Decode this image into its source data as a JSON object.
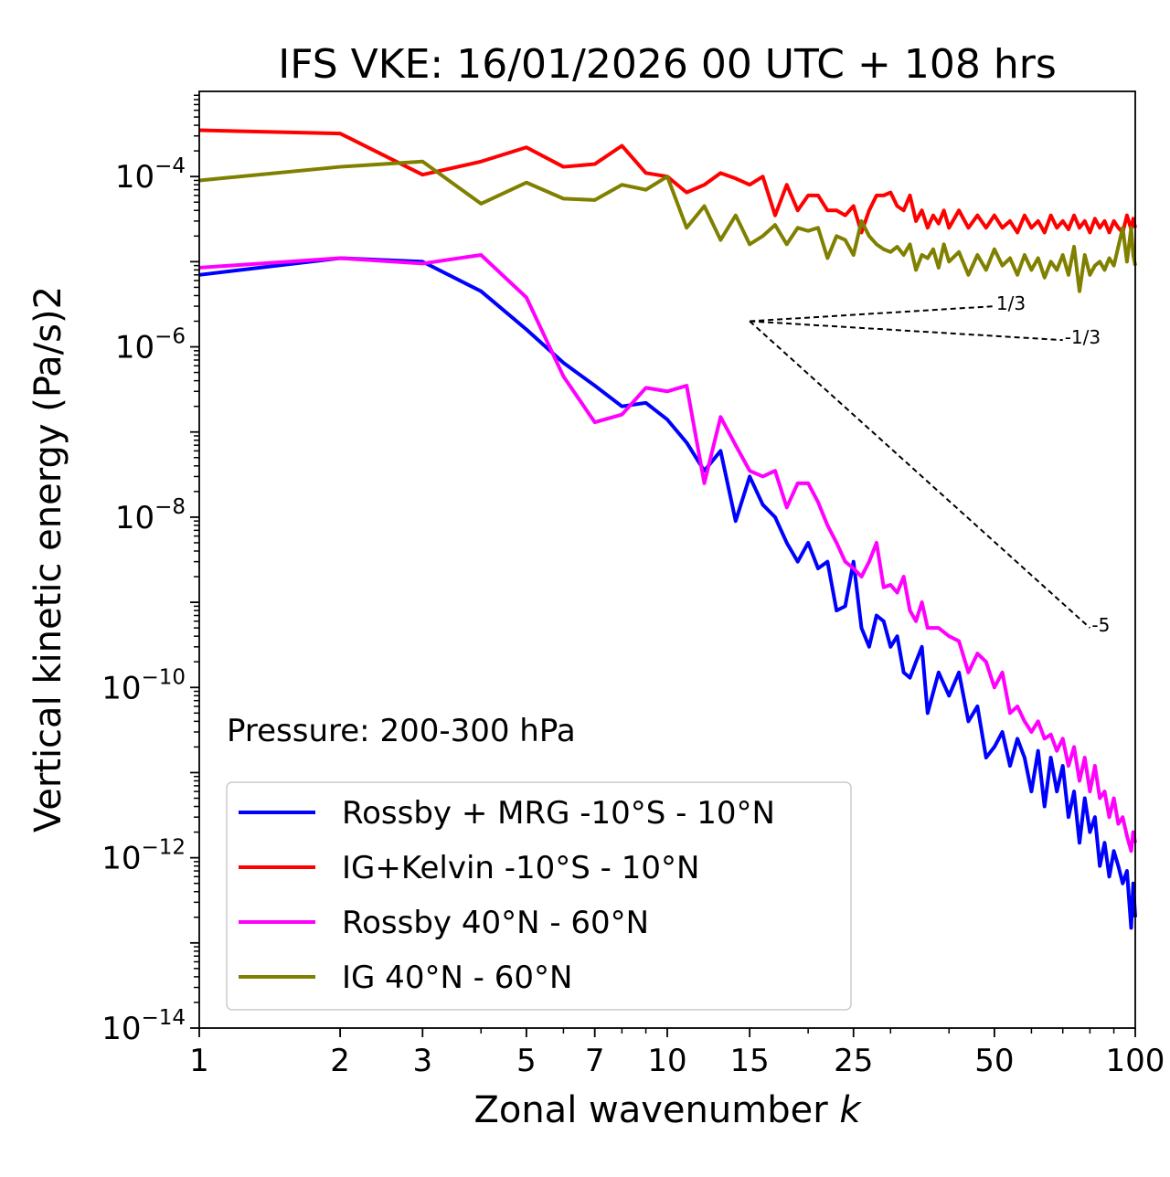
{
  "chart_data": {
    "type": "line",
    "title": "IFS VKE: 16/01/2026 00 UTC + 108 hrs",
    "xlabel": "Zonal wavenumber k",
    "ylabel": "Vertical kinetic energy (Pa/s)2",
    "xscale": "log",
    "yscale": "log",
    "xlim": [
      1,
      100
    ],
    "ylim": [
      1e-14,
      0.001
    ],
    "xticks": [
      1,
      2,
      3,
      5,
      7,
      10,
      15,
      25,
      50,
      100
    ],
    "xtick_labels": [
      "1",
      "2",
      "3",
      "5",
      "7",
      "10",
      "15",
      "25",
      "50",
      "100"
    ],
    "yticks": [
      {
        "value": 0.0001,
        "base": "10",
        "exp": "−4"
      },
      {
        "value": 1e-06,
        "base": "10",
        "exp": "−6"
      },
      {
        "value": 1e-08,
        "base": "10",
        "exp": "−8"
      },
      {
        "value": 1e-10,
        "base": "10",
        "exp": "−10"
      },
      {
        "value": 1e-12,
        "base": "10",
        "exp": "−12"
      },
      {
        "value": 1e-14,
        "base": "10",
        "exp": "−14"
      }
    ],
    "annotation": "Pressure: 200-300 hPa",
    "legend_position": "bottom-left",
    "series": [
      {
        "name": "Rossby + MRG -10°S - 10°N",
        "color": "#0000ff",
        "points": [
          [
            1,
            7e-06
          ],
          [
            2,
            1.1e-05
          ],
          [
            3,
            1e-05
          ],
          [
            4,
            4.5e-06
          ],
          [
            5,
            1.6e-06
          ],
          [
            6,
            6.5e-07
          ],
          [
            7,
            3.5e-07
          ],
          [
            8,
            2e-07
          ],
          [
            9,
            2.2e-07
          ],
          [
            10,
            1.4e-07
          ],
          [
            11,
            7.5e-08
          ],
          [
            12,
            3.5e-08
          ],
          [
            13,
            6e-08
          ],
          [
            14,
            9e-09
          ],
          [
            15,
            3e-08
          ],
          [
            16,
            1.4e-08
          ],
          [
            17,
            1e-08
          ],
          [
            18,
            5e-09
          ],
          [
            19,
            3e-09
          ],
          [
            20,
            5e-09
          ],
          [
            21,
            2.5e-09
          ],
          [
            22,
            3e-09
          ],
          [
            23,
            8e-10
          ],
          [
            24,
            9e-10
          ],
          [
            25,
            3e-09
          ],
          [
            26,
            5e-10
          ],
          [
            27,
            3e-10
          ],
          [
            28,
            7e-10
          ],
          [
            29,
            6e-10
          ],
          [
            30,
            3e-10
          ],
          [
            31,
            4e-10
          ],
          [
            32,
            1.5e-10
          ],
          [
            33,
            1.3e-10
          ],
          [
            34,
            2e-10
          ],
          [
            35,
            3e-10
          ],
          [
            36,
            5e-11
          ],
          [
            38,
            1.5e-10
          ],
          [
            40,
            8e-11
          ],
          [
            42,
            1.5e-10
          ],
          [
            44,
            4e-11
          ],
          [
            46,
            6e-11
          ],
          [
            48,
            1.5e-11
          ],
          [
            50,
            2e-11
          ],
          [
            52,
            3e-11
          ],
          [
            54,
            1.2e-11
          ],
          [
            56,
            2.5e-11
          ],
          [
            58,
            1.5e-11
          ],
          [
            60,
            6e-12
          ],
          [
            62,
            1.8e-11
          ],
          [
            64,
            4e-12
          ],
          [
            66,
            1.5e-11
          ],
          [
            68,
            6e-12
          ],
          [
            70,
            1.2e-11
          ],
          [
            72,
            3e-12
          ],
          [
            74,
            6e-12
          ],
          [
            76,
            1.5e-12
          ],
          [
            78,
            5e-12
          ],
          [
            80,
            2e-12
          ],
          [
            82,
            3e-12
          ],
          [
            84,
            8e-13
          ],
          [
            86,
            1.5e-12
          ],
          [
            88,
            6e-13
          ],
          [
            90,
            1.2e-12
          ],
          [
            92,
            8e-13
          ],
          [
            94,
            5e-13
          ],
          [
            96,
            7e-13
          ],
          [
            98,
            1.5e-13
          ],
          [
            99,
            5e-13
          ],
          [
            100,
            2e-13
          ]
        ]
      },
      {
        "name": "IG+Kelvin -10°S - 10°N",
        "color": "#ff0000",
        "points": [
          [
            1,
            0.00035
          ],
          [
            2,
            0.00032
          ],
          [
            3,
            0.000105
          ],
          [
            4,
            0.00015
          ],
          [
            5,
            0.00022
          ],
          [
            6,
            0.00013
          ],
          [
            7,
            0.00014
          ],
          [
            8,
            0.00023
          ],
          [
            9,
            0.00011
          ],
          [
            10,
            0.0001
          ],
          [
            11,
            6.5e-05
          ],
          [
            12,
            8e-05
          ],
          [
            13,
            0.00011
          ],
          [
            14,
            9.5e-05
          ],
          [
            15,
            8e-05
          ],
          [
            16,
            0.0001
          ],
          [
            17,
            3.5e-05
          ],
          [
            18,
            8e-05
          ],
          [
            19,
            4e-05
          ],
          [
            20,
            6e-05
          ],
          [
            21,
            6e-05
          ],
          [
            22,
            4e-05
          ],
          [
            23,
            4e-05
          ],
          [
            24,
            3.5e-05
          ],
          [
            25,
            4.5e-05
          ],
          [
            26,
            2.2e-05
          ],
          [
            27,
            4e-05
          ],
          [
            28,
            6e-05
          ],
          [
            29,
            6e-05
          ],
          [
            30,
            6.5e-05
          ],
          [
            31,
            4.5e-05
          ],
          [
            32,
            4e-05
          ],
          [
            33,
            6e-05
          ],
          [
            34,
            3e-05
          ],
          [
            35,
            4e-05
          ],
          [
            36,
            2.5e-05
          ],
          [
            37,
            3.5e-05
          ],
          [
            38,
            2.8e-05
          ],
          [
            39,
            4e-05
          ],
          [
            40,
            2.5e-05
          ],
          [
            42,
            4e-05
          ],
          [
            44,
            2.5e-05
          ],
          [
            46,
            3.5e-05
          ],
          [
            48,
            2.5e-05
          ],
          [
            50,
            3.5e-05
          ],
          [
            52,
            2.5e-05
          ],
          [
            54,
            3e-05
          ],
          [
            56,
            2.2e-05
          ],
          [
            58,
            3.5e-05
          ],
          [
            60,
            2.5e-05
          ],
          [
            62,
            3e-05
          ],
          [
            64,
            2.2e-05
          ],
          [
            66,
            3.5e-05
          ],
          [
            68,
            2.5e-05
          ],
          [
            70,
            3e-05
          ],
          [
            72,
            2.4e-05
          ],
          [
            74,
            3.5e-05
          ],
          [
            76,
            2.5e-05
          ],
          [
            78,
            3e-05
          ],
          [
            80,
            2.2e-05
          ],
          [
            82,
            3.2e-05
          ],
          [
            84,
            2.5e-05
          ],
          [
            86,
            3e-05
          ],
          [
            88,
            2.2e-05
          ],
          [
            90,
            3e-05
          ],
          [
            92,
            2.5e-05
          ],
          [
            94,
            2.2e-05
          ],
          [
            96,
            3.5e-05
          ],
          [
            98,
            2.4e-05
          ],
          [
            99,
            3.2e-05
          ],
          [
            100,
            2.5e-05
          ]
        ]
      },
      {
        "name": "Rossby 40°N - 60°N",
        "color": "#ff00ff",
        "points": [
          [
            1,
            8.5e-06
          ],
          [
            2,
            1.1e-05
          ],
          [
            3,
            9.5e-06
          ],
          [
            4,
            1.2e-05
          ],
          [
            5,
            3.8e-06
          ],
          [
            6,
            4.5e-07
          ],
          [
            7,
            1.3e-07
          ],
          [
            8,
            1.6e-07
          ],
          [
            9,
            3.3e-07
          ],
          [
            10,
            3e-07
          ],
          [
            11,
            3.5e-07
          ],
          [
            12,
            2.5e-08
          ],
          [
            13,
            1.5e-07
          ],
          [
            14,
            7e-08
          ],
          [
            15,
            3.5e-08
          ],
          [
            16,
            3e-08
          ],
          [
            17,
            3.5e-08
          ],
          [
            18,
            1.3e-08
          ],
          [
            19,
            2.5e-08
          ],
          [
            20,
            2.5e-08
          ],
          [
            21,
            1.5e-08
          ],
          [
            22,
            8e-09
          ],
          [
            23,
            5e-09
          ],
          [
            24,
            3e-09
          ],
          [
            25,
            2.5e-09
          ],
          [
            26,
            2e-09
          ],
          [
            27,
            3e-09
          ],
          [
            28,
            5e-09
          ],
          [
            29,
            1.5e-09
          ],
          [
            30,
            1.6e-09
          ],
          [
            31,
            1.3e-09
          ],
          [
            32,
            2e-09
          ],
          [
            33,
            8e-10
          ],
          [
            34,
            6e-10
          ],
          [
            35,
            1e-09
          ],
          [
            36,
            5e-10
          ],
          [
            38,
            5e-10
          ],
          [
            40,
            4e-10
          ],
          [
            42,
            3.5e-10
          ],
          [
            44,
            1.5e-10
          ],
          [
            46,
            2.5e-10
          ],
          [
            48,
            2e-10
          ],
          [
            50,
            1e-10
          ],
          [
            52,
            1.5e-10
          ],
          [
            54,
            5e-11
          ],
          [
            56,
            6e-11
          ],
          [
            58,
            4e-11
          ],
          [
            60,
            3e-11
          ],
          [
            62,
            4e-11
          ],
          [
            64,
            2.5e-11
          ],
          [
            66,
            2.8e-11
          ],
          [
            68,
            1.8e-11
          ],
          [
            70,
            2.5e-11
          ],
          [
            72,
            1.2e-11
          ],
          [
            74,
            2e-11
          ],
          [
            76,
            8e-12
          ],
          [
            78,
            1.5e-11
          ],
          [
            80,
            6e-12
          ],
          [
            82,
            1.2e-11
          ],
          [
            84,
            5e-12
          ],
          [
            86,
            6e-12
          ],
          [
            88,
            3e-12
          ],
          [
            90,
            5e-12
          ],
          [
            92,
            2.5e-12
          ],
          [
            94,
            3e-12
          ],
          [
            96,
            1.8e-12
          ],
          [
            98,
            1.2e-12
          ],
          [
            99,
            2e-12
          ],
          [
            100,
            1.5e-12
          ]
        ]
      },
      {
        "name": "IG 40°N - 60°N",
        "color": "#808000",
        "points": [
          [
            1,
            9e-05
          ],
          [
            2,
            0.00013
          ],
          [
            3,
            0.00015
          ],
          [
            4,
            4.8e-05
          ],
          [
            5,
            8.5e-05
          ],
          [
            6,
            5.5e-05
          ],
          [
            7,
            5.3e-05
          ],
          [
            8,
            8e-05
          ],
          [
            9,
            7e-05
          ],
          [
            10,
            0.0001
          ],
          [
            11,
            2.5e-05
          ],
          [
            12,
            4.5e-05
          ],
          [
            13,
            1.8e-05
          ],
          [
            14,
            3.5e-05
          ],
          [
            15,
            1.6e-05
          ],
          [
            16,
            2e-05
          ],
          [
            17,
            2.7e-05
          ],
          [
            18,
            1.6e-05
          ],
          [
            19,
            2.5e-05
          ],
          [
            20,
            2.3e-05
          ],
          [
            21,
            2.5e-05
          ],
          [
            22,
            1.1e-05
          ],
          [
            23,
            2e-05
          ],
          [
            24,
            1.8e-05
          ],
          [
            25,
            1.2e-05
          ],
          [
            26,
            3e-05
          ],
          [
            27,
            2e-05
          ],
          [
            28,
            1.6e-05
          ],
          [
            29,
            1.4e-05
          ],
          [
            30,
            1.3e-05
          ],
          [
            31,
            1.5e-05
          ],
          [
            32,
            1.2e-05
          ],
          [
            33,
            1.6e-05
          ],
          [
            34,
            8e-06
          ],
          [
            35,
            1.2e-05
          ],
          [
            36,
            1.1e-05
          ],
          [
            37,
            1.4e-05
          ],
          [
            38,
            8.5e-06
          ],
          [
            39,
            1.6e-05
          ],
          [
            40,
            1e-05
          ],
          [
            42,
            1.3e-05
          ],
          [
            44,
            7e-06
          ],
          [
            46,
            1.2e-05
          ],
          [
            48,
            8e-06
          ],
          [
            50,
            1.4e-05
          ],
          [
            52,
            9e-06
          ],
          [
            54,
            1.1e-05
          ],
          [
            56,
            7e-06
          ],
          [
            58,
            1.2e-05
          ],
          [
            60,
            8e-06
          ],
          [
            62,
            1.1e-05
          ],
          [
            64,
            6.5e-06
          ],
          [
            66,
            1e-05
          ],
          [
            68,
            8e-06
          ],
          [
            70,
            1.2e-05
          ],
          [
            72,
            7e-06
          ],
          [
            74,
            1.5e-05
          ],
          [
            76,
            4.5e-06
          ],
          [
            78,
            1.2e-05
          ],
          [
            80,
            7e-06
          ],
          [
            82,
            9e-06
          ],
          [
            84,
            1e-05
          ],
          [
            86,
            8e-06
          ],
          [
            88,
            1.1e-05
          ],
          [
            90,
            9e-06
          ],
          [
            92,
            1.5e-05
          ],
          [
            94,
            2.5e-05
          ],
          [
            96,
            1e-05
          ],
          [
            98,
            2.5e-05
          ],
          [
            99,
            1.2e-05
          ],
          [
            100,
            9e-06
          ]
        ]
      }
    ],
    "reference_lines": [
      {
        "label": "1/3",
        "from": [
          15,
          2e-06
        ],
        "to": [
          50,
          3e-06
        ]
      },
      {
        "label": "-1/3",
        "from": [
          15,
          2e-06
        ],
        "to": [
          70,
          1.2e-06
        ]
      },
      {
        "label": "-5",
        "from": [
          15,
          2e-06
        ],
        "to": [
          80,
          5e-10
        ]
      }
    ]
  }
}
